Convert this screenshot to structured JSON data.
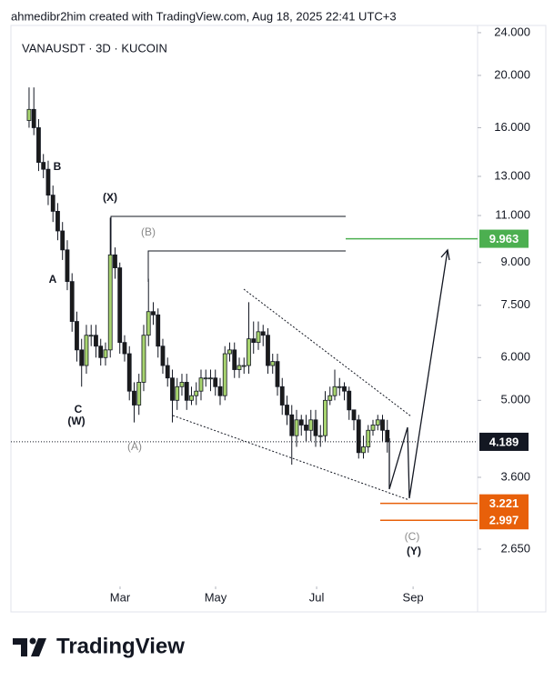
{
  "header": "ahmedibr2him created with TradingView.com, Aug 18, 2025 22:41 UTC+3",
  "footer": {
    "brand": "TradingView"
  },
  "chart_data": {
    "type": "candlestick",
    "title": "VANAUSDT · 3D · KUCOIN",
    "log_scale": true,
    "up_color": "#a8d46f",
    "down_color": "#1b1b1b",
    "open": [
      16.5,
      17.3,
      16.0,
      13.8,
      13.4,
      12.0,
      11.2,
      10.3,
      9.5,
      8.3,
      7.0,
      6.2,
      5.8,
      6.6,
      6.6,
      6.3,
      6.0,
      6.2,
      9.3,
      8.8,
      6.4,
      6.1,
      5.2,
      4.9,
      5.4,
      6.6,
      7.3,
      7.2,
      6.3,
      5.8,
      5.5,
      5.0,
      5.3,
      5.4,
      5.0,
      5.1,
      5.2,
      5.5,
      5.5,
      5.5,
      5.3,
      5.1,
      6.1,
      6.2,
      5.7,
      5.8,
      5.8,
      6.5,
      6.4,
      6.7,
      6.6,
      5.8,
      5.9,
      5.3,
      4.9,
      4.7,
      4.3,
      4.6,
      4.5,
      4.4,
      4.6,
      4.3,
      4.3,
      5.0,
      5.1,
      5.3,
      5.3,
      5.2,
      4.8,
      4.6,
      4.0,
      4.1,
      4.4,
      4.5,
      4.6,
      4.4
    ],
    "high": [
      19.0,
      19.0,
      16.6,
      14.3,
      13.9,
      12.5,
      11.6,
      10.7,
      9.9,
      8.6,
      7.3,
      6.5,
      6.9,
      6.9,
      6.9,
      6.5,
      6.4,
      10.9,
      9.6,
      9.0,
      6.6,
      6.3,
      5.4,
      5.6,
      6.9,
      8.4,
      7.6,
      7.4,
      6.5,
      6.0,
      5.7,
      5.5,
      5.6,
      5.6,
      5.3,
      5.4,
      5.7,
      5.7,
      5.7,
      5.7,
      5.5,
      6.3,
      6.4,
      6.4,
      6.0,
      6.0,
      7.6,
      7.0,
      7.0,
      6.9,
      6.8,
      6.1,
      6.1,
      5.5,
      5.1,
      4.9,
      4.8,
      4.7,
      4.7,
      4.8,
      4.8,
      4.5,
      5.2,
      5.3,
      5.7,
      5.5,
      5.4,
      5.3,
      4.8,
      4.7,
      4.3,
      4.5,
      4.6,
      4.7,
      4.7,
      4.6
    ],
    "low": [
      16.0,
      15.5,
      13.3,
      12.9,
      11.5,
      10.7,
      9.9,
      9.1,
      8.0,
      6.7,
      5.9,
      5.3,
      5.6,
      6.3,
      6.0,
      5.8,
      5.8,
      6.0,
      8.4,
      6.1,
      5.9,
      5.0,
      4.55,
      4.7,
      5.2,
      6.3,
      6.9,
      6.0,
      5.6,
      5.3,
      4.55,
      4.8,
      5.1,
      4.8,
      4.9,
      4.9,
      5.0,
      5.3,
      5.2,
      5.1,
      4.9,
      5.0,
      5.9,
      5.5,
      5.5,
      5.6,
      5.6,
      6.1,
      6.2,
      6.3,
      5.6,
      5.6,
      5.1,
      4.7,
      4.5,
      3.8,
      4.1,
      4.3,
      4.2,
      4.2,
      4.1,
      4.1,
      4.2,
      4.9,
      5.0,
      5.1,
      5.0,
      4.6,
      4.4,
      3.9,
      3.9,
      4.0,
      4.3,
      4.4,
      4.2,
      4.0
    ],
    "close": [
      17.3,
      16.0,
      13.8,
      13.4,
      12.0,
      11.2,
      10.3,
      9.5,
      8.3,
      7.0,
      6.2,
      5.8,
      6.6,
      6.6,
      6.3,
      6.0,
      6.2,
      9.3,
      8.8,
      6.4,
      6.1,
      5.2,
      4.9,
      5.4,
      6.6,
      7.3,
      7.2,
      6.3,
      5.8,
      5.5,
      5.0,
      5.3,
      5.4,
      5.0,
      5.1,
      5.2,
      5.5,
      5.5,
      5.5,
      5.3,
      5.1,
      6.1,
      6.2,
      5.7,
      5.8,
      5.8,
      6.5,
      6.4,
      6.7,
      6.6,
      5.8,
      5.9,
      5.3,
      4.9,
      4.7,
      4.3,
      4.6,
      4.5,
      4.4,
      4.6,
      4.3,
      4.3,
      5.0,
      5.1,
      5.3,
      5.3,
      5.2,
      4.8,
      4.6,
      4.0,
      4.1,
      4.4,
      4.5,
      4.6,
      4.4,
      4.189
    ],
    "xlim": [
      -3.8,
      93.9
    ],
    "xticks": [
      {
        "value": 19.05,
        "label": "Mar"
      },
      {
        "value": 39.05,
        "label": "May"
      },
      {
        "value": 60.2,
        "label": "Jul"
      },
      {
        "value": 80.4,
        "label": "Sep"
      }
    ],
    "ylim": [
      2.26,
      24.75
    ],
    "yticks": [
      {
        "value": 24,
        "label": "24.000"
      },
      {
        "value": 20,
        "label": "20.000"
      },
      {
        "value": 16,
        "label": "16.000"
      },
      {
        "value": 13,
        "label": "13.000"
      },
      {
        "value": 11,
        "label": "11.000"
      },
      {
        "value": 9,
        "label": "9.000"
      },
      {
        "value": 7.5,
        "label": "7.500"
      },
      {
        "value": 6,
        "label": "6.000"
      },
      {
        "value": 5,
        "label": "5.000"
      },
      {
        "value": 3.6,
        "label": "3.600"
      },
      {
        "value": 2.65,
        "label": "2.650"
      }
    ],
    "levels": [
      {
        "value": 9.963,
        "color": "#4caf50"
      },
      {
        "value": 4.189,
        "color": "#131722"
      },
      {
        "value": 3.221,
        "color": "#e8600a"
      },
      {
        "value": 2.997,
        "color": "#e8600a"
      }
    ],
    "annotations": [
      "B",
      "A",
      "C",
      "(W)",
      "(X)",
      "(B)",
      "(A)",
      "(C)",
      "(Y)"
    ]
  }
}
